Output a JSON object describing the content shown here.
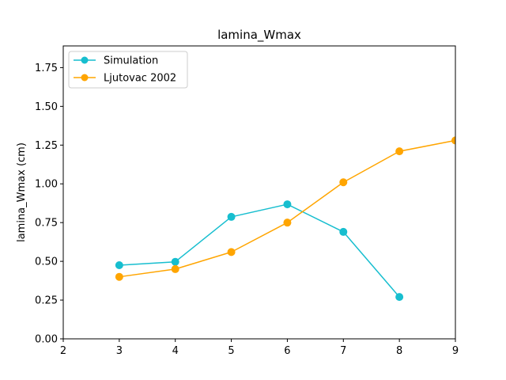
{
  "chart_data": {
    "type": "line",
    "title": "lamina_Wmax",
    "xlabel": "",
    "ylabel": "lamina_Wmax (cm)",
    "xlim": [
      2,
      9
    ],
    "ylim": [
      0,
      1.89
    ],
    "xticks": [
      2,
      3,
      4,
      5,
      6,
      7,
      8,
      9
    ],
    "yticks": [
      0.0,
      0.25,
      0.5,
      0.75,
      1.0,
      1.25,
      1.5,
      1.75
    ],
    "xtick_labels": [
      "2",
      "3",
      "4",
      "5",
      "6",
      "7",
      "8",
      "9"
    ],
    "ytick_labels": [
      "0.00",
      "0.25",
      "0.50",
      "0.75",
      "1.00",
      "1.25",
      "1.50",
      "1.75"
    ],
    "grid": false,
    "legend_position": "top-left",
    "series": [
      {
        "name": "Simulation",
        "color": "#17becf",
        "marker": "circle",
        "x": [
          3,
          4,
          5,
          6,
          7,
          8
        ],
        "y": [
          0.475,
          0.497,
          0.787,
          0.868,
          0.69,
          0.27
        ]
      },
      {
        "name": "Ljutovac 2002",
        "color": "#ffa500",
        "marker": "circle",
        "x": [
          3,
          4,
          5,
          6,
          7,
          8,
          9
        ],
        "y": [
          0.4,
          0.45,
          0.56,
          0.75,
          1.01,
          1.21,
          1.28
        ]
      }
    ]
  }
}
